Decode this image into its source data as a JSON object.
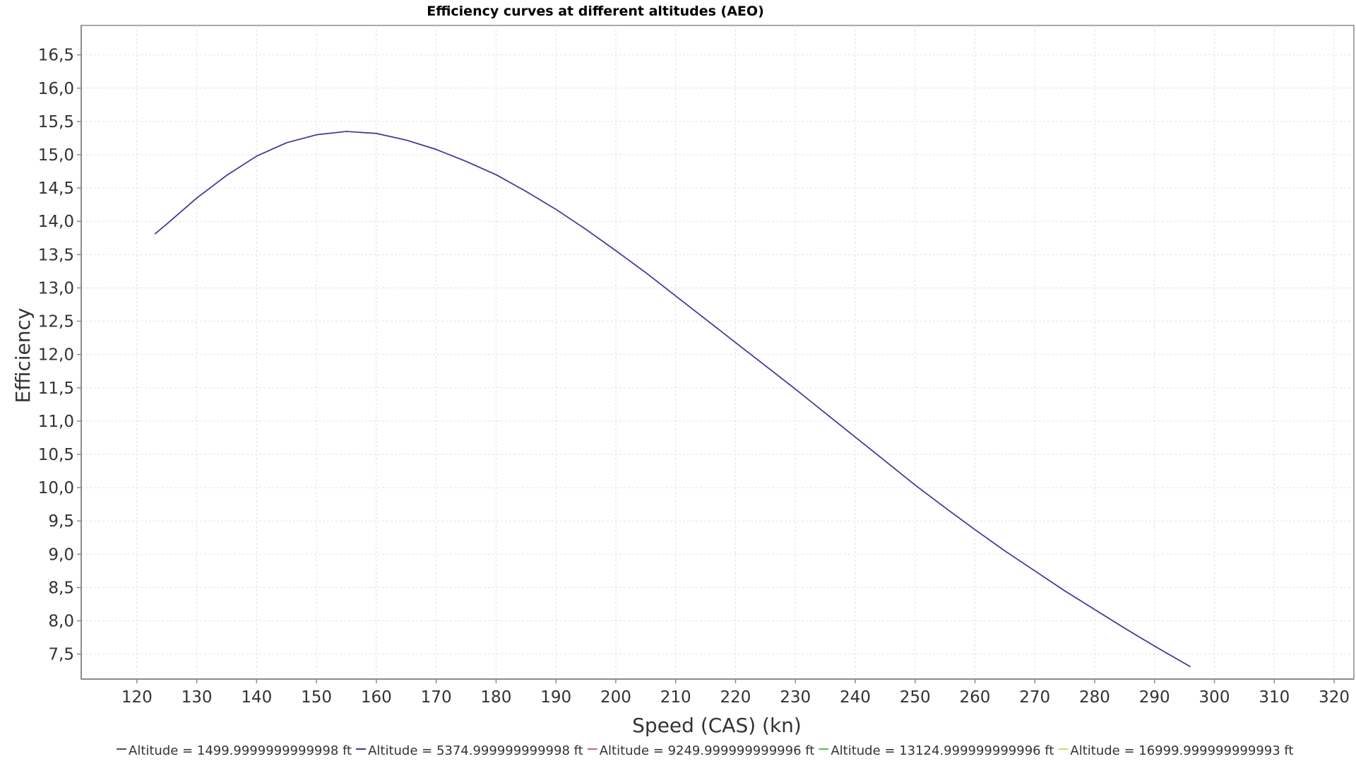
{
  "chart_data": {
    "type": "line",
    "title": "Efficiency curves at different altitudes (AEO)",
    "xlabel": "Speed (CAS) (kn)",
    "ylabel": "Efficiency",
    "xlim": [
      110.7,
      323.3
    ],
    "ylim": [
      7.125,
      16.942
    ],
    "x_ticks": [
      120,
      130,
      140,
      150,
      160,
      170,
      180,
      190,
      200,
      210,
      220,
      230,
      240,
      250,
      260,
      270,
      280,
      290,
      300,
      310,
      320
    ],
    "y_ticks": [
      7.5,
      8.0,
      8.5,
      9.0,
      9.5,
      10.0,
      10.5,
      11.0,
      11.5,
      12.0,
      12.5,
      13.0,
      13.5,
      14.0,
      14.5,
      15.0,
      15.5,
      16.0,
      16.5
    ],
    "x_tick_labels": [
      "120",
      "130",
      "140",
      "150",
      "160",
      "170",
      "180",
      "190",
      "200",
      "210",
      "220",
      "230",
      "240",
      "250",
      "260",
      "270",
      "280",
      "290",
      "300",
      "310",
      "320"
    ],
    "y_tick_labels": [
      "7,5",
      "8,0",
      "8,5",
      "9,0",
      "9,5",
      "10,0",
      "10,5",
      "11,0",
      "11,5",
      "12,0",
      "12,5",
      "13,0",
      "13,5",
      "14,0",
      "14,5",
      "15,0",
      "15,5",
      "16,0",
      "16,5"
    ],
    "grid": true,
    "legend_position": "bottom",
    "series": [
      {
        "name": "Altitude = 1499.9999999999998 ft",
        "color": "#555555",
        "x": [
          123,
          125,
          130,
          135,
          140,
          145,
          150,
          155,
          160,
          165,
          170,
          175,
          180,
          185,
          190,
          195,
          200,
          205,
          210,
          215,
          220,
          225,
          230,
          235,
          240,
          245,
          250,
          255,
          260,
          265,
          270,
          275,
          280,
          285,
          290,
          296
        ],
        "y": [
          13.81,
          13.96,
          14.35,
          14.69,
          14.98,
          15.18,
          15.3,
          15.35,
          15.32,
          15.22,
          15.08,
          14.9,
          14.7,
          14.45,
          14.18,
          13.88,
          13.56,
          13.23,
          12.88,
          12.53,
          12.18,
          11.83,
          11.48,
          11.12,
          10.76,
          10.4,
          10.04,
          9.7,
          9.37,
          9.05,
          8.75,
          8.45,
          8.17,
          7.89,
          7.62,
          7.31
        ]
      },
      {
        "name": "Altitude = 5374.999999999998 ft",
        "color": "#3a3aa0",
        "x": [
          123,
          125,
          130,
          135,
          140,
          145,
          150,
          155,
          160,
          165,
          170,
          175,
          180,
          185,
          190,
          195,
          200,
          205,
          210,
          215,
          220,
          225,
          230,
          235,
          240,
          245,
          250,
          255,
          260,
          265,
          270,
          275,
          280,
          285,
          290,
          296
        ],
        "y": [
          13.81,
          13.96,
          14.35,
          14.69,
          14.98,
          15.18,
          15.3,
          15.35,
          15.32,
          15.22,
          15.08,
          14.9,
          14.7,
          14.45,
          14.18,
          13.88,
          13.56,
          13.23,
          12.88,
          12.53,
          12.18,
          11.83,
          11.48,
          11.12,
          10.76,
          10.4,
          10.04,
          9.7,
          9.37,
          9.05,
          8.75,
          8.45,
          8.17,
          7.89,
          7.62,
          7.31
        ]
      },
      {
        "name": "Altitude = 9249.999999999996 ft",
        "color": "#e0607e",
        "x": [],
        "y": []
      },
      {
        "name": "Altitude = 13124.999999999996 ft",
        "color": "#60b860",
        "x": [],
        "y": []
      },
      {
        "name": "Altitude = 16999.999999999993 ft",
        "color": "#d4d470",
        "x": [],
        "y": []
      }
    ]
  }
}
